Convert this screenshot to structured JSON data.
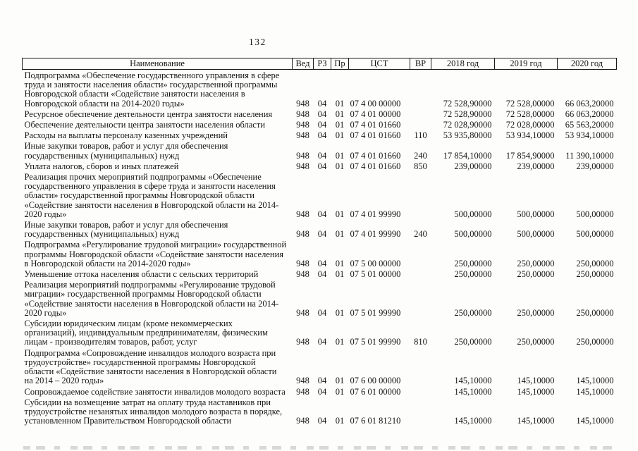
{
  "page": {
    "number": "132"
  },
  "table": {
    "headers": [
      "Наименование",
      "Вед",
      "РЗ",
      "Пр",
      "ЦСТ",
      "ВР",
      "2018 год",
      "2019 год",
      "2020 год"
    ],
    "rows": [
      {
        "name": "Подпрограмма «Обеспечение государственного управления в сфере труда и занятости населения области» государственной программы Новгородской области «Содействие занятости населения в Новгородской области на 2014-2020 годы»",
        "ved": "948",
        "rz": "04",
        "pr": "01",
        "cst": "07 4 00 00000",
        "vr": "",
        "y2018": "72 528,90000",
        "y2019": "72 528,00000",
        "y2020": "66 063,20000"
      },
      {
        "name": "Ресурсное обеспечение деятельности центра занятости населения",
        "ved": "948",
        "rz": "04",
        "pr": "01",
        "cst": "07 4 01 00000",
        "vr": "",
        "y2018": "72 528,90000",
        "y2019": "72 528,00000",
        "y2020": "66 063,20000"
      },
      {
        "name": "Обеспечение деятельности центра занятости населения области",
        "ved": "948",
        "rz": "04",
        "pr": "01",
        "cst": "07 4 01 01660",
        "vr": "",
        "y2018": "72 028,90000",
        "y2019": "72 028,00000",
        "y2020": "65 563,20000"
      },
      {
        "name": "Расходы на выплаты персоналу казенных учреждений",
        "ved": "948",
        "rz": "04",
        "pr": "01",
        "cst": "07 4 01 01660",
        "vr": "110",
        "y2018": "53 935,80000",
        "y2019": "53 934,10000",
        "y2020": "53 934,10000"
      },
      {
        "name": "Иные закупки товаров, работ и услуг для обеспечения государственных (муниципальных) нужд",
        "ved": "948",
        "rz": "04",
        "pr": "01",
        "cst": "07 4 01 01660",
        "vr": "240",
        "y2018": "17 854,10000",
        "y2019": "17 854,90000",
        "y2020": "11 390,10000"
      },
      {
        "name": "Уплата налогов, сборов и иных платежей",
        "ved": "948",
        "rz": "04",
        "pr": "01",
        "cst": "07 4 01 01660",
        "vr": "850",
        "y2018": "239,00000",
        "y2019": "239,00000",
        "y2020": "239,00000"
      },
      {
        "name": "Реализация прочих мероприятий подпрограммы «Обеспечение государственного управления в сфере труда и занятости населения области» государственной программы Новгородской области «Содействие занятости населения в Новгородской области на 2014-2020 годы»",
        "ved": "948",
        "rz": "04",
        "pr": "01",
        "cst": "07 4 01 99990",
        "vr": "",
        "y2018": "500,00000",
        "y2019": "500,00000",
        "y2020": "500,00000"
      },
      {
        "name": "Иные закупки товаров, работ и услуг для обеспечения государственных (муниципальных) нужд",
        "ved": "948",
        "rz": "04",
        "pr": "01",
        "cst": "07 4 01 99990",
        "vr": "240",
        "y2018": "500,00000",
        "y2019": "500,00000",
        "y2020": "500,00000"
      },
      {
        "name": "Подпрограмма «Регулирование трудовой миграции» государственной программы Новгородской области «Содействие занятости населения в Новгородской области на 2014-2020 годы»",
        "ved": "948",
        "rz": "04",
        "pr": "01",
        "cst": "07 5 00 00000",
        "vr": "",
        "y2018": "250,00000",
        "y2019": "250,00000",
        "y2020": "250,00000"
      },
      {
        "name": "Уменьшение оттока населения области с сельских территорий",
        "ved": "948",
        "rz": "04",
        "pr": "01",
        "cst": "07 5 01 00000",
        "vr": "",
        "y2018": "250,00000",
        "y2019": "250,00000",
        "y2020": "250,00000"
      },
      {
        "name": "Реализация мероприятий подпрограммы «Регулирование трудовой миграции» государственной программы Новгородской области «Содействие занятости населения в Новгородской области на 2014-2020 годы»",
        "ved": "948",
        "rz": "04",
        "pr": "01",
        "cst": "07 5 01 99990",
        "vr": "",
        "y2018": "250,00000",
        "y2019": "250,00000",
        "y2020": "250,00000"
      },
      {
        "name": "Субсидии юридическим лицам (кроме некоммерческих организаций), индивидуальным предпринимателям, физическим лицам - производителям товаров, работ, услуг",
        "ved": "948",
        "rz": "04",
        "pr": "01",
        "cst": "07 5 01 99990",
        "vr": "810",
        "y2018": "250,00000",
        "y2019": "250,00000",
        "y2020": "250,00000"
      },
      {
        "name": "Подпрограмма «Сопровождение инвалидов молодого возраста при трудоустройстве» государственной программы Новгородской области «Содействие занятости населения в Новгородской области на 2014 – 2020 годы»",
        "ved": "948",
        "rz": "04",
        "pr": "01",
        "cst": "07 6 00 00000",
        "vr": "",
        "y2018": "145,10000",
        "y2019": "145,10000",
        "y2020": "145,10000"
      },
      {
        "name": "Сопровождаемое содействие занятости инвалидов молодого возраста",
        "ved": "948",
        "rz": "04",
        "pr": "01",
        "cst": "07 6 01 00000",
        "vr": "",
        "y2018": "145,10000",
        "y2019": "145,10000",
        "y2020": "145,10000"
      },
      {
        "name": "Субсидии на возмещение затрат на оплату труда наставников при трудоустройстве незанятых инвалидов молодого возраста в порядке, установленном Правительством Новгородской области",
        "ved": "948",
        "rz": "04",
        "pr": "01",
        "cst": "07 6 01 81210",
        "vr": "",
        "y2018": "145,10000",
        "y2019": "145,10000",
        "y2020": "145,10000"
      }
    ]
  }
}
